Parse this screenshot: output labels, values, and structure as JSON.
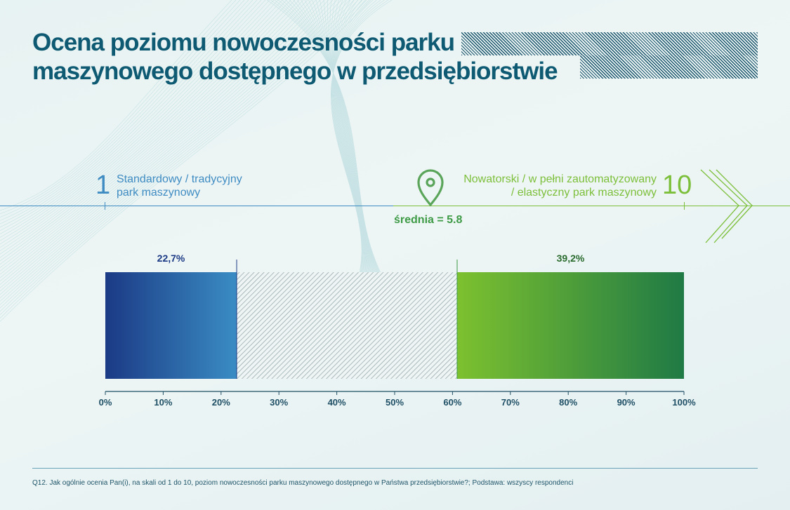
{
  "title": {
    "line1": "Ocena poziomu nowoczesności parku",
    "line2": "maszynowego dostępnego w przedsiębiorstwie"
  },
  "scale": {
    "low_value": "1",
    "low_label": "Standardowy / tradycyjny\npark maszynowy",
    "high_value": "10",
    "high_label": "Nowatorski / w pełni zautomatyzowany\n/ elastyczny park maszynowy",
    "mean_label": "średnia = 5.8",
    "mean_icon": "location-pin-icon"
  },
  "colors": {
    "title": "#0f5a73",
    "low_blue": "#3f8cc3",
    "high_green": "#7cbf3a",
    "mean_green": "#3d9a45",
    "bar_blue_start": "#1b3a85",
    "bar_blue_end": "#3a8cc4",
    "bar_green_start": "#7dc12f",
    "bar_green_end": "#1f7a45"
  },
  "chart_data": {
    "type": "bar",
    "orientation": "horizontal-stacked",
    "segments": [
      {
        "name": "",
        "value": 22.7,
        "label": "22,7%",
        "style": "blue-gradient"
      },
      {
        "name": "",
        "value": 38.1,
        "label": "",
        "style": "hatched"
      },
      {
        "name": "",
        "value": 39.2,
        "label": "39,2%",
        "style": "green-gradient"
      }
    ],
    "xlim": [
      0,
      100
    ],
    "x_ticks": [
      "0%",
      "10%",
      "20%",
      "30%",
      "40%",
      "50%",
      "60%",
      "70%",
      "80%",
      "90%",
      "100%"
    ],
    "title": "",
    "xlabel": "",
    "ylabel": ""
  },
  "footnote": "Q12. Jak ogólnie ocenia Pan(i), na skali od 1 do 10, poziom nowoczesności parku maszynowego dostępnego w Państwa przedsiębiorstwie?; Podstawa: wszyscy respondenci"
}
